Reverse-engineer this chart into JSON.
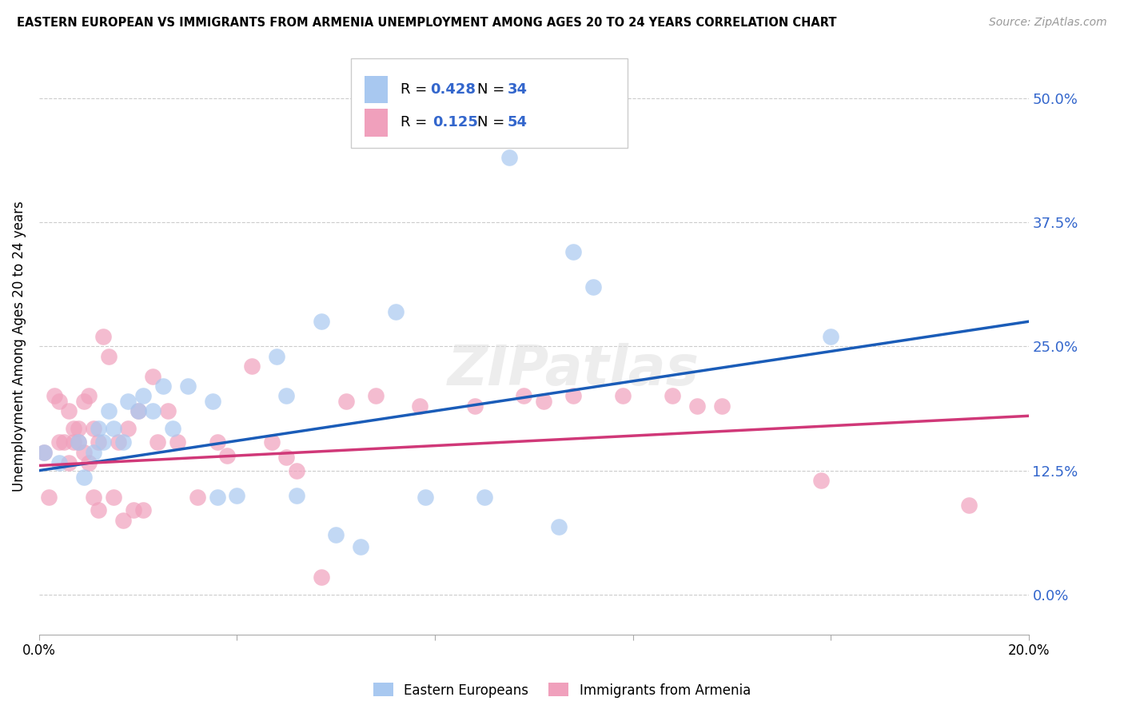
{
  "title": "EASTERN EUROPEAN VS IMMIGRANTS FROM ARMENIA UNEMPLOYMENT AMONG AGES 20 TO 24 YEARS CORRELATION CHART",
  "source": "Source: ZipAtlas.com",
  "ylabel": "Unemployment Among Ages 20 to 24 years",
  "xlim": [
    0.0,
    0.2
  ],
  "ylim": [
    -0.04,
    0.54
  ],
  "ytick_vals": [
    0.0,
    0.125,
    0.25,
    0.375,
    0.5
  ],
  "ytick_labels": [
    "0.0%",
    "12.5%",
    "25.0%",
    "37.5%",
    "50.0%"
  ],
  "xtick_vals": [
    0.0,
    0.04,
    0.08,
    0.12,
    0.16,
    0.2
  ],
  "xtick_labels": [
    "0.0%",
    "",
    "",
    "",
    "",
    "20.0%"
  ],
  "legend_labels": [
    "Eastern Europeans",
    "Immigrants from Armenia"
  ],
  "R_blue": 0.428,
  "N_blue": 34,
  "R_pink": 0.125,
  "N_pink": 54,
  "color_blue": "#A8C8F0",
  "color_pink": "#F0A0BC",
  "line_color_blue": "#1A5CB8",
  "line_color_pink": "#D03878",
  "label_color": "#3366CC",
  "watermark": "ZIPatlas",
  "blue_line": [
    0.0,
    0.125,
    0.2,
    0.275
  ],
  "pink_line": [
    0.0,
    0.13,
    0.2,
    0.18
  ],
  "blue_points": [
    [
      0.001,
      0.143
    ],
    [
      0.004,
      0.133
    ],
    [
      0.008,
      0.154
    ],
    [
      0.009,
      0.118
    ],
    [
      0.011,
      0.143
    ],
    [
      0.012,
      0.167
    ],
    [
      0.013,
      0.154
    ],
    [
      0.014,
      0.185
    ],
    [
      0.015,
      0.167
    ],
    [
      0.017,
      0.154
    ],
    [
      0.018,
      0.195
    ],
    [
      0.02,
      0.185
    ],
    [
      0.021,
      0.2
    ],
    [
      0.023,
      0.185
    ],
    [
      0.025,
      0.21
    ],
    [
      0.027,
      0.167
    ],
    [
      0.03,
      0.21
    ],
    [
      0.035,
      0.195
    ],
    [
      0.036,
      0.098
    ],
    [
      0.04,
      0.1
    ],
    [
      0.048,
      0.24
    ],
    [
      0.05,
      0.2
    ],
    [
      0.052,
      0.1
    ],
    [
      0.057,
      0.275
    ],
    [
      0.06,
      0.06
    ],
    [
      0.065,
      0.048
    ],
    [
      0.072,
      0.285
    ],
    [
      0.078,
      0.098
    ],
    [
      0.09,
      0.098
    ],
    [
      0.095,
      0.44
    ],
    [
      0.108,
      0.345
    ],
    [
      0.112,
      0.31
    ],
    [
      0.16,
      0.26
    ],
    [
      0.105,
      0.068
    ]
  ],
  "pink_points": [
    [
      0.001,
      0.143
    ],
    [
      0.002,
      0.098
    ],
    [
      0.003,
      0.2
    ],
    [
      0.004,
      0.154
    ],
    [
      0.004,
      0.195
    ],
    [
      0.005,
      0.154
    ],
    [
      0.006,
      0.133
    ],
    [
      0.006,
      0.185
    ],
    [
      0.007,
      0.167
    ],
    [
      0.007,
      0.154
    ],
    [
      0.008,
      0.167
    ],
    [
      0.008,
      0.154
    ],
    [
      0.009,
      0.195
    ],
    [
      0.009,
      0.143
    ],
    [
      0.01,
      0.2
    ],
    [
      0.01,
      0.133
    ],
    [
      0.011,
      0.167
    ],
    [
      0.011,
      0.098
    ],
    [
      0.012,
      0.154
    ],
    [
      0.012,
      0.085
    ],
    [
      0.013,
      0.26
    ],
    [
      0.014,
      0.24
    ],
    [
      0.015,
      0.098
    ],
    [
      0.016,
      0.154
    ],
    [
      0.017,
      0.075
    ],
    [
      0.018,
      0.167
    ],
    [
      0.019,
      0.085
    ],
    [
      0.02,
      0.185
    ],
    [
      0.021,
      0.085
    ],
    [
      0.023,
      0.22
    ],
    [
      0.024,
      0.154
    ],
    [
      0.026,
      0.185
    ],
    [
      0.028,
      0.154
    ],
    [
      0.032,
      0.098
    ],
    [
      0.036,
      0.154
    ],
    [
      0.038,
      0.14
    ],
    [
      0.043,
      0.23
    ],
    [
      0.047,
      0.154
    ],
    [
      0.05,
      0.138
    ],
    [
      0.052,
      0.125
    ],
    [
      0.057,
      0.018
    ],
    [
      0.062,
      0.195
    ],
    [
      0.068,
      0.2
    ],
    [
      0.077,
      0.19
    ],
    [
      0.088,
      0.19
    ],
    [
      0.098,
      0.2
    ],
    [
      0.102,
      0.195
    ],
    [
      0.108,
      0.2
    ],
    [
      0.118,
      0.2
    ],
    [
      0.128,
      0.2
    ],
    [
      0.133,
      0.19
    ],
    [
      0.138,
      0.19
    ],
    [
      0.158,
      0.115
    ],
    [
      0.188,
      0.09
    ]
  ]
}
